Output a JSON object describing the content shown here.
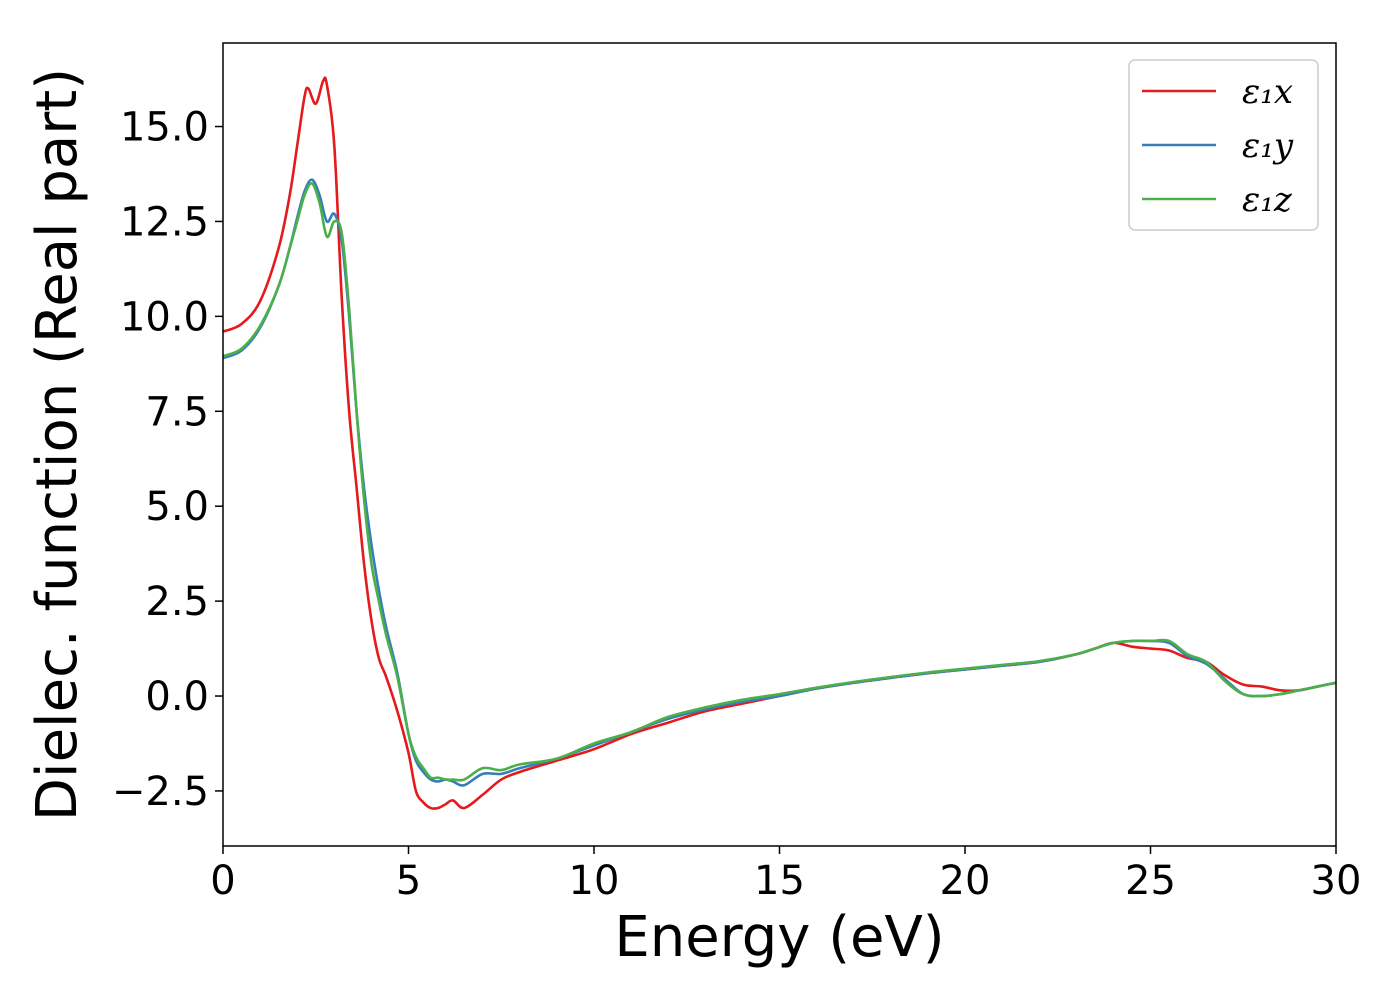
{
  "chart_data": {
    "type": "line",
    "xlabel": "Energy (eV)",
    "ylabel": "Dielec. function (Real part)",
    "xlim": [
      0,
      30
    ],
    "ylim": [
      -3.95,
      17.2
    ],
    "xticks": [
      0,
      5,
      10,
      15,
      20,
      25,
      30
    ],
    "xtick_labels": [
      "0",
      "5",
      "10",
      "15",
      "20",
      "25",
      "30"
    ],
    "yticks": [
      -2.5,
      0.0,
      2.5,
      5.0,
      7.5,
      10.0,
      12.5,
      15.0
    ],
    "ytick_labels": [
      "−2.5",
      "0.0",
      "2.5",
      "5.0",
      "7.5",
      "10.0",
      "12.5",
      "15.0"
    ],
    "grid": false,
    "legend_position": "top-right",
    "series": [
      {
        "name": "ε₁x",
        "color": "#e41a1c",
        "x": [
          0,
          0.5,
          1.0,
          1.5,
          1.8,
          2.0,
          2.2,
          2.3,
          2.5,
          2.7,
          2.8,
          3.0,
          3.2,
          3.4,
          3.6,
          3.8,
          4.0,
          4.2,
          4.4,
          4.7,
          5.0,
          5.2,
          5.4,
          5.6,
          5.8,
          6.0,
          6.2,
          6.5,
          7.0,
          7.5,
          8.0,
          9.0,
          10.0,
          11.0,
          12.0,
          13.0,
          14.0,
          15.0,
          16.0,
          17.0,
          18.0,
          19.0,
          20.0,
          21.0,
          22.0,
          23.0,
          23.5,
          24.0,
          24.5,
          25.0,
          25.5,
          26.0,
          26.5,
          27.0,
          27.5,
          28.0,
          28.5,
          29.0,
          29.5,
          30.0
        ],
        "y": [
          9.6,
          9.8,
          10.4,
          11.8,
          13.2,
          14.5,
          15.8,
          16.0,
          15.6,
          16.2,
          16.1,
          14.5,
          10.5,
          7.5,
          5.5,
          3.5,
          2.0,
          1.0,
          0.5,
          -0.4,
          -1.5,
          -2.5,
          -2.8,
          -2.95,
          -2.95,
          -2.85,
          -2.75,
          -2.95,
          -2.6,
          -2.2,
          -2.0,
          -1.7,
          -1.4,
          -1.0,
          -0.7,
          -0.4,
          -0.2,
          0.0,
          0.2,
          0.35,
          0.48,
          0.6,
          0.7,
          0.8,
          0.9,
          1.1,
          1.25,
          1.4,
          1.3,
          1.25,
          1.2,
          1.0,
          0.9,
          0.55,
          0.3,
          0.25,
          0.15,
          0.15,
          0.25,
          0.35
        ]
      },
      {
        "name": "ε₁y",
        "color": "#377eb8",
        "x": [
          0,
          0.5,
          1.0,
          1.5,
          1.8,
          2.0,
          2.2,
          2.4,
          2.6,
          2.8,
          3.0,
          3.2,
          3.4,
          3.6,
          3.8,
          4.0,
          4.2,
          4.4,
          4.7,
          5.0,
          5.2,
          5.4,
          5.6,
          5.8,
          6.0,
          6.2,
          6.5,
          7.0,
          7.5,
          8.0,
          9.0,
          10.0,
          11.0,
          12.0,
          13.0,
          14.0,
          15.0,
          16.0,
          17.0,
          18.0,
          19.0,
          20.0,
          21.0,
          22.0,
          23.0,
          23.5,
          24.0,
          24.5,
          25.0,
          25.5,
          26.0,
          26.5,
          27.0,
          27.5,
          28.0,
          28.5,
          29.0,
          29.5,
          30.0
        ],
        "y": [
          8.9,
          9.1,
          9.7,
          10.8,
          11.8,
          12.6,
          13.3,
          13.6,
          13.2,
          12.5,
          12.7,
          12.0,
          10.0,
          7.5,
          5.5,
          4.0,
          2.8,
          1.8,
          0.6,
          -1.0,
          -1.7,
          -2.0,
          -2.2,
          -2.25,
          -2.2,
          -2.25,
          -2.35,
          -2.05,
          -2.05,
          -1.9,
          -1.65,
          -1.3,
          -0.95,
          -0.6,
          -0.35,
          -0.15,
          0.0,
          0.2,
          0.35,
          0.48,
          0.6,
          0.7,
          0.8,
          0.9,
          1.1,
          1.25,
          1.4,
          1.45,
          1.45,
          1.4,
          1.05,
          0.85,
          0.45,
          0.05,
          0.0,
          0.05,
          0.15,
          0.25,
          0.35
        ]
      },
      {
        "name": "ε₁z",
        "color": "#4daf4a",
        "x": [
          0,
          0.5,
          1.0,
          1.5,
          1.8,
          2.0,
          2.2,
          2.4,
          2.6,
          2.8,
          3.0,
          3.2,
          3.4,
          3.6,
          3.8,
          4.0,
          4.2,
          4.4,
          4.7,
          5.0,
          5.2,
          5.4,
          5.6,
          5.8,
          6.0,
          6.2,
          6.5,
          7.0,
          7.5,
          8.0,
          9.0,
          10.0,
          11.0,
          12.0,
          13.0,
          14.0,
          15.0,
          16.0,
          17.0,
          18.0,
          19.0,
          20.0,
          21.0,
          22.0,
          23.0,
          23.5,
          24.0,
          24.5,
          25.0,
          25.5,
          26.0,
          26.5,
          27.0,
          27.5,
          28.0,
          28.5,
          29.0,
          29.5,
          30.0
        ],
        "y": [
          8.95,
          9.15,
          9.75,
          10.8,
          11.8,
          12.5,
          13.2,
          13.5,
          13.0,
          12.1,
          12.5,
          12.2,
          10.2,
          7.5,
          5.2,
          3.5,
          2.5,
          1.6,
          0.5,
          -1.0,
          -1.6,
          -1.9,
          -2.15,
          -2.15,
          -2.2,
          -2.2,
          -2.2,
          -1.9,
          -1.95,
          -1.8,
          -1.65,
          -1.25,
          -0.95,
          -0.55,
          -0.3,
          -0.1,
          0.05,
          0.22,
          0.37,
          0.5,
          0.62,
          0.72,
          0.82,
          0.92,
          1.1,
          1.25,
          1.4,
          1.45,
          1.45,
          1.45,
          1.1,
          0.9,
          0.4,
          0.05,
          0.0,
          0.05,
          0.15,
          0.25,
          0.35
        ]
      }
    ]
  }
}
